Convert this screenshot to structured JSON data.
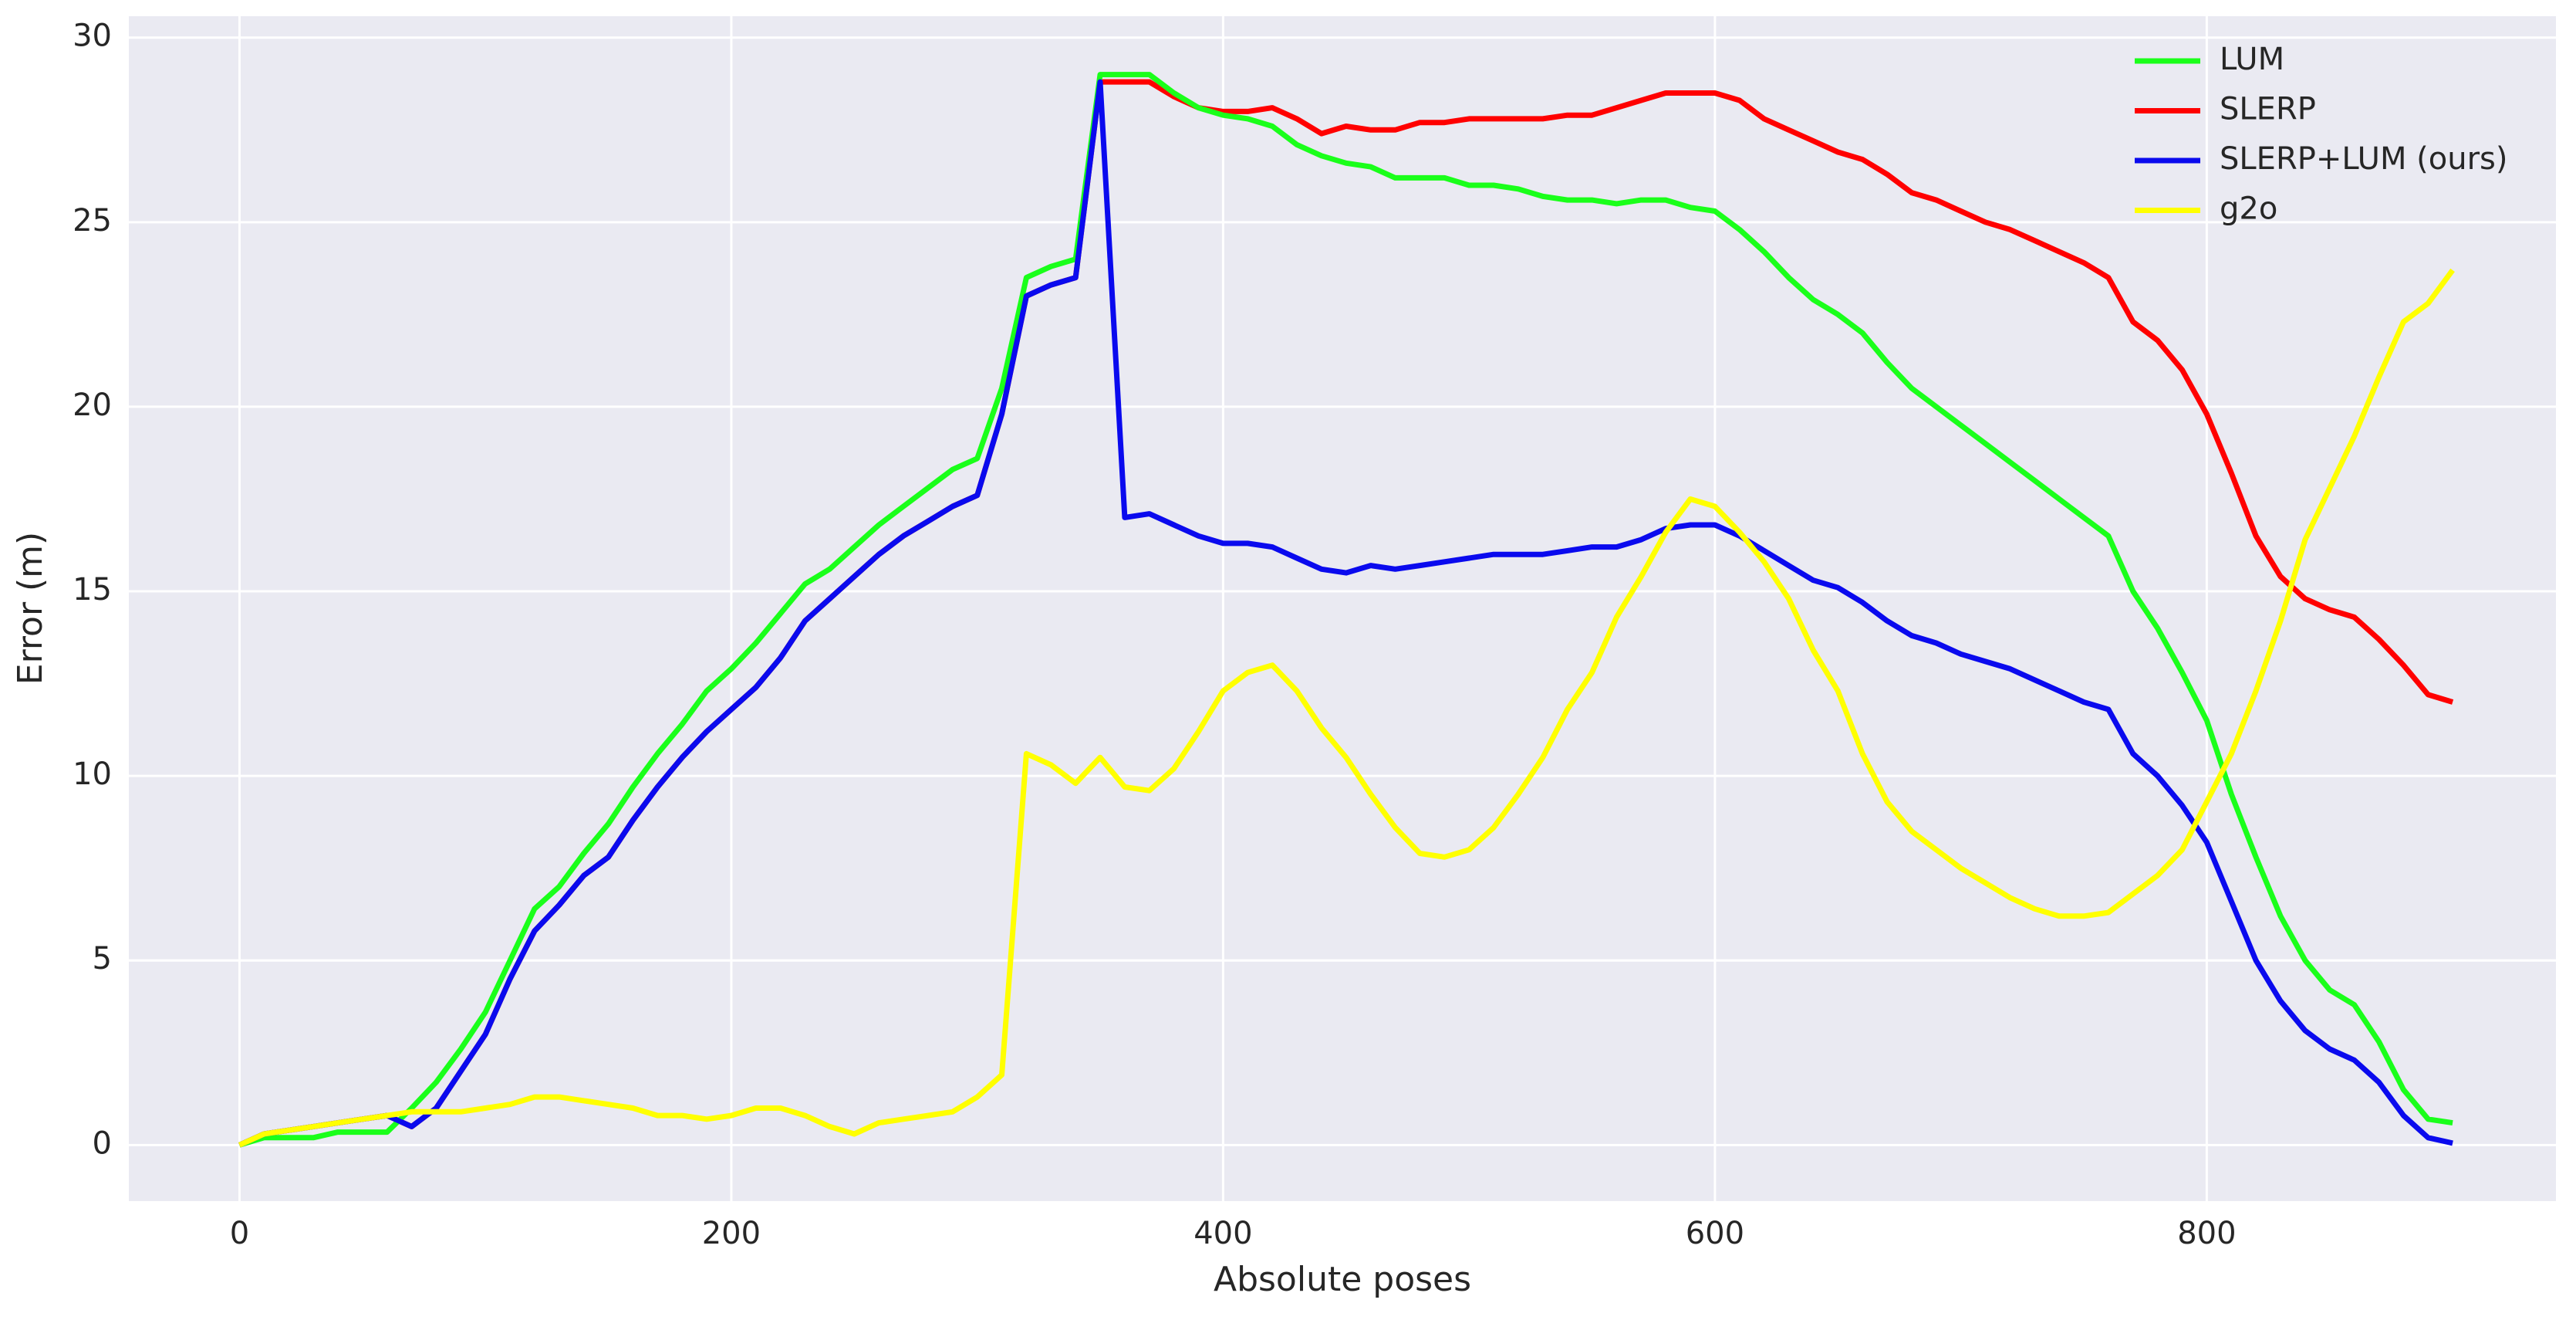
{
  "chart_data": {
    "type": "line",
    "xlabel": "Absolute poses",
    "ylabel": "Error (m)",
    "x": [
      0,
      10,
      20,
      30,
      40,
      50,
      60,
      70,
      80,
      90,
      100,
      110,
      120,
      130,
      140,
      150,
      160,
      170,
      180,
      190,
      200,
      210,
      220,
      230,
      240,
      250,
      260,
      270,
      280,
      290,
      300,
      310,
      320,
      330,
      340,
      350,
      360,
      370,
      380,
      390,
      400,
      410,
      420,
      430,
      440,
      450,
      460,
      470,
      480,
      490,
      500,
      510,
      520,
      530,
      540,
      550,
      560,
      570,
      580,
      590,
      600,
      610,
      620,
      630,
      640,
      650,
      660,
      670,
      680,
      690,
      700,
      710,
      720,
      730,
      740,
      750,
      760,
      770,
      780,
      790,
      800,
      810,
      820,
      830,
      840,
      850,
      860,
      870,
      880,
      890,
      900
    ],
    "series": [
      {
        "name": "SLERP",
        "color": "#ff0000",
        "values": [
          0,
          0.3,
          0.4,
          0.5,
          0.6,
          0.7,
          0.8,
          0.5,
          1.0,
          2.0,
          3.0,
          4.5,
          5.8,
          6.5,
          7.3,
          7.8,
          8.8,
          9.7,
          10.5,
          11.2,
          11.8,
          12.4,
          13.2,
          14.2,
          14.8,
          15.4,
          16.0,
          16.5,
          16.9,
          17.3,
          17.6,
          19.8,
          23.0,
          23.3,
          23.5,
          28.8,
          28.8,
          28.8,
          28.4,
          28.1,
          28.0,
          28.0,
          28.1,
          27.8,
          27.4,
          27.6,
          27.5,
          27.5,
          27.7,
          27.7,
          27.8,
          27.8,
          27.8,
          27.8,
          27.9,
          27.9,
          28.1,
          28.3,
          28.5,
          28.5,
          28.5,
          28.3,
          27.8,
          27.5,
          27.2,
          26.9,
          26.7,
          26.3,
          25.8,
          25.6,
          25.3,
          25.0,
          24.8,
          24.5,
          24.2,
          23.9,
          23.5,
          22.3,
          21.8,
          21.0,
          19.8,
          18.2,
          16.5,
          15.4,
          14.8,
          14.5,
          14.3,
          13.7,
          13.0,
          12.2,
          12.0
        ]
      },
      {
        "name": "LUM",
        "color": "#1aff1a",
        "values": [
          0,
          0.2,
          0.2,
          0.2,
          0.35,
          0.35,
          0.35,
          1.0,
          1.7,
          2.6,
          3.6,
          5.0,
          6.4,
          7.0,
          7.9,
          8.7,
          9.7,
          10.6,
          11.4,
          12.3,
          12.9,
          13.6,
          14.4,
          15.2,
          15.6,
          16.2,
          16.8,
          17.3,
          17.8,
          18.3,
          18.6,
          20.5,
          23.5,
          23.8,
          24.0,
          29.0,
          29.0,
          29.0,
          28.5,
          28.1,
          27.9,
          27.8,
          27.6,
          27.1,
          26.8,
          26.6,
          26.5,
          26.2,
          26.2,
          26.2,
          26.0,
          26.0,
          25.9,
          25.7,
          25.6,
          25.6,
          25.5,
          25.6,
          25.6,
          25.4,
          25.3,
          24.8,
          24.2,
          23.5,
          22.9,
          22.5,
          22.0,
          21.2,
          20.5,
          20.0,
          19.5,
          19.0,
          18.5,
          18.0,
          17.5,
          17.0,
          16.5,
          15.0,
          14.0,
          12.8,
          11.5,
          9.5,
          7.8,
          6.2,
          5.0,
          4.2,
          3.8,
          2.8,
          1.5,
          0.7,
          0.6
        ]
      },
      {
        "name": "SLERP+LUM (ours)",
        "color": "#0a0aee",
        "values": [
          0,
          0.3,
          0.4,
          0.5,
          0.6,
          0.7,
          0.8,
          0.5,
          1.0,
          2.0,
          3.0,
          4.5,
          5.8,
          6.5,
          7.3,
          7.8,
          8.8,
          9.7,
          10.5,
          11.2,
          11.8,
          12.4,
          13.2,
          14.2,
          14.8,
          15.4,
          16.0,
          16.5,
          16.9,
          17.3,
          17.6,
          19.8,
          23.0,
          23.3,
          23.5,
          28.8,
          17.0,
          17.1,
          16.8,
          16.5,
          16.3,
          16.3,
          16.2,
          15.9,
          15.6,
          15.5,
          15.7,
          15.6,
          15.7,
          15.8,
          15.9,
          16.0,
          16.0,
          16.0,
          16.1,
          16.2,
          16.2,
          16.4,
          16.7,
          16.8,
          16.8,
          16.5,
          16.1,
          15.7,
          15.3,
          15.1,
          14.7,
          14.2,
          13.8,
          13.6,
          13.3,
          13.1,
          12.9,
          12.6,
          12.3,
          12.0,
          11.8,
          10.6,
          10.0,
          9.2,
          8.2,
          6.6,
          5.0,
          3.9,
          3.1,
          2.6,
          2.3,
          1.7,
          0.8,
          0.2,
          0.05
        ]
      },
      {
        "name": "g2o",
        "color": "#ffff00",
        "values": [
          0,
          0.3,
          0.4,
          0.5,
          0.6,
          0.7,
          0.8,
          0.9,
          0.9,
          0.9,
          1.0,
          1.1,
          1.3,
          1.3,
          1.2,
          1.1,
          1.0,
          0.8,
          0.8,
          0.7,
          0.8,
          1.0,
          1.0,
          0.8,
          0.5,
          0.3,
          0.6,
          0.7,
          0.8,
          0.9,
          1.3,
          1.9,
          10.6,
          10.3,
          9.8,
          10.5,
          9.7,
          9.6,
          10.2,
          11.2,
          12.3,
          12.8,
          13.0,
          12.3,
          11.3,
          10.5,
          9.5,
          8.6,
          7.9,
          7.8,
          8.0,
          8.6,
          9.5,
          10.5,
          11.8,
          12.8,
          14.3,
          15.4,
          16.6,
          17.5,
          17.3,
          16.6,
          15.8,
          14.8,
          13.4,
          12.3,
          10.6,
          9.3,
          8.5,
          8.0,
          7.5,
          7.1,
          6.7,
          6.4,
          6.2,
          6.2,
          6.3,
          6.8,
          7.3,
          8.0,
          9.3,
          10.6,
          12.3,
          14.2,
          16.4,
          17.8,
          19.2,
          20.8,
          22.3,
          22.8,
          23.7
        ]
      }
    ],
    "legend_order": [
      "LUM",
      "SLERP",
      "SLERP+LUM (ours)",
      "g2o"
    ],
    "xlim": [
      -45,
      942
    ],
    "ylim": [
      -1.52,
      30.58
    ],
    "xticks": [
      0,
      200,
      400,
      600,
      800
    ],
    "yticks": [
      0,
      5,
      10,
      15,
      20,
      25,
      30
    ],
    "grid": true,
    "legend": "upper right"
  }
}
